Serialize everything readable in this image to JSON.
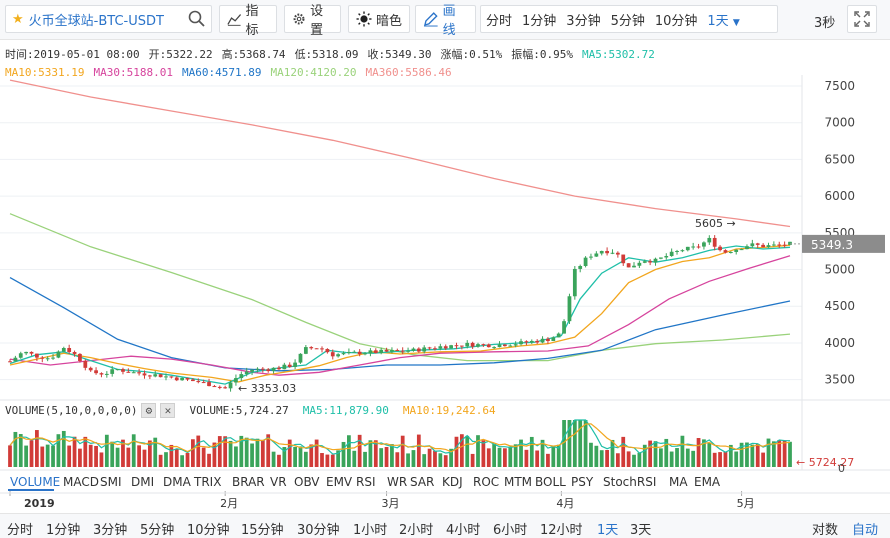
{
  "toolbar": {
    "symbol": "火币全球站-BTC-USDT",
    "indicators_label": "指标",
    "settings_label": "设置",
    "dark_label": "暗色",
    "draw_label": "画线",
    "intervals": [
      "分时",
      "1分钟",
      "3分钟",
      "5分钟",
      "10分钟",
      "1天"
    ],
    "active_interval": "1天",
    "refresh": "3秒"
  },
  "info": {
    "time": "时间:2019-05-01 08:00",
    "open": "开:5322.22",
    "high": "高:5368.74",
    "low": "低:5318.09",
    "close": "收:5349.30",
    "change": "涨幅:0.51%",
    "amplitude": "振幅:0.95%",
    "ma5": "MA5:5302.72",
    "ma10": "MA10:5331.19",
    "ma30": "MA30:5188.01",
    "ma60": "MA60:4571.89",
    "ma120": "MA120:4120.20",
    "ma360": "MA360:5586.46"
  },
  "colors": {
    "up": "#3aa45b",
    "down": "#d13b38",
    "ma5": "#1fbfa8",
    "ma10": "#f2a61e",
    "ma30": "#d6449d",
    "ma60": "#2176c7",
    "ma120": "#9ad27b",
    "ma360": "#f0908d",
    "accent": "#2a73c9"
  },
  "volume_info": {
    "title": "VOLUME(5,10,0,0,0,0)",
    "volume": "VOLUME:5,724.27",
    "ma5": "MA5:11,879.90",
    "ma10": "MA10:19,242.64"
  },
  "indicator_tabs": [
    "VOLUME",
    "MACD",
    "SMI",
    "DMI",
    "DMA",
    "TRIX",
    "BRAR",
    "VR",
    "OBV",
    "EMV",
    "RSI",
    "WR",
    "SAR",
    "KDJ",
    "ROC",
    "MTM",
    "BOLL",
    "PSY",
    "StochRSI",
    "MA",
    "EMA"
  ],
  "active_indicator": "VOLUME",
  "bottom": {
    "intervals": [
      "分时",
      "1分钟",
      "3分钟",
      "5分钟",
      "10分钟",
      "15分钟",
      "30分钟",
      "1小时",
      "2小时",
      "4小时",
      "6小时",
      "12小时",
      "1天",
      "3天"
    ],
    "active_interval": "1天",
    "log_label": "对数",
    "auto_label": "自动"
  },
  "chart_data": {
    "type": "candlestick",
    "price_axis": {
      "ticks": [
        "7500",
        "7000",
        "6500",
        "6000",
        "5500",
        "5000",
        "4500",
        "4000",
        "3500"
      ],
      "range": [
        3250,
        7650
      ]
    },
    "volume_axis": {
      "ticks": [
        "0"
      ]
    },
    "x_labels": [
      "2019",
      "2月",
      "3月",
      "4月",
      "5月"
    ],
    "last_price": "5349.3",
    "max_label": "5605 →",
    "min_label": "← 3353.03",
    "volume_last_label": "← 5724.27",
    "series": {
      "ma360": [
        [
          0,
          7580
        ],
        [
          30,
          7350
        ],
        [
          60,
          7160
        ],
        [
          90,
          6970
        ],
        [
          120,
          6760
        ],
        [
          150,
          6510
        ],
        [
          180,
          6240
        ],
        [
          210,
          6000
        ],
        [
          240,
          5830
        ],
        [
          270,
          5690
        ],
        [
          290,
          5586
        ]
      ],
      "ma120": [
        [
          0,
          5760
        ],
        [
          30,
          5310
        ],
        [
          60,
          4960
        ],
        [
          90,
          4590
        ],
        [
          110,
          4280
        ],
        [
          130,
          3990
        ],
        [
          150,
          3840
        ],
        [
          170,
          3760
        ],
        [
          200,
          3760
        ],
        [
          220,
          3900
        ],
        [
          240,
          3990
        ],
        [
          265,
          4040
        ],
        [
          290,
          4120
        ]
      ],
      "ma60": [
        [
          0,
          4890
        ],
        [
          20,
          4480
        ],
        [
          40,
          4050
        ],
        [
          60,
          3800
        ],
        [
          80,
          3660
        ],
        [
          100,
          3620
        ],
        [
          120,
          3640
        ],
        [
          140,
          3700
        ],
        [
          160,
          3700
        ],
        [
          180,
          3730
        ],
        [
          200,
          3790
        ],
        [
          220,
          3900
        ],
        [
          240,
          4180
        ],
        [
          265,
          4380
        ],
        [
          290,
          4572
        ]
      ],
      "ma30": [
        [
          0,
          3780
        ],
        [
          15,
          3700
        ],
        [
          30,
          3760
        ],
        [
          45,
          3820
        ],
        [
          60,
          3780
        ],
        [
          75,
          3700
        ],
        [
          90,
          3600
        ],
        [
          100,
          3560
        ],
        [
          115,
          3600
        ],
        [
          130,
          3700
        ],
        [
          145,
          3800
        ],
        [
          160,
          3860
        ],
        [
          180,
          3880
        ],
        [
          200,
          3890
        ],
        [
          215,
          3960
        ],
        [
          230,
          4250
        ],
        [
          245,
          4600
        ],
        [
          260,
          4840
        ],
        [
          275,
          5020
        ],
        [
          290,
          5188
        ]
      ],
      "ma10": [
        [
          0,
          3700
        ],
        [
          10,
          3780
        ],
        [
          20,
          3860
        ],
        [
          30,
          3800
        ],
        [
          40,
          3720
        ],
        [
          50,
          3650
        ],
        [
          60,
          3590
        ],
        [
          75,
          3530
        ],
        [
          85,
          3470
        ],
        [
          95,
          3560
        ],
        [
          105,
          3620
        ],
        [
          115,
          3690
        ],
        [
          125,
          3800
        ],
        [
          135,
          3880
        ],
        [
          145,
          3850
        ],
        [
          160,
          3880
        ],
        [
          175,
          3890
        ],
        [
          190,
          3960
        ],
        [
          200,
          3990
        ],
        [
          210,
          4080
        ],
        [
          220,
          4400
        ],
        [
          230,
          4820
        ],
        [
          240,
          5000
        ],
        [
          250,
          5110
        ],
        [
          260,
          5160
        ],
        [
          270,
          5280
        ],
        [
          280,
          5300
        ],
        [
          290,
          5331
        ]
      ],
      "ma5": [
        [
          0,
          3720
        ],
        [
          10,
          3840
        ],
        [
          20,
          3880
        ],
        [
          30,
          3760
        ],
        [
          40,
          3640
        ],
        [
          50,
          3610
        ],
        [
          60,
          3560
        ],
        [
          70,
          3500
        ],
        [
          80,
          3440
        ],
        [
          90,
          3600
        ],
        [
          100,
          3660
        ],
        [
          110,
          3700
        ],
        [
          118,
          3900
        ],
        [
          125,
          3870
        ],
        [
          135,
          3860
        ],
        [
          150,
          3900
        ],
        [
          165,
          3920
        ],
        [
          180,
          3980
        ],
        [
          195,
          4010
        ],
        [
          205,
          4100
        ],
        [
          212,
          4600
        ],
        [
          220,
          4950
        ],
        [
          230,
          5160
        ],
        [
          240,
          5100
        ],
        [
          250,
          5160
        ],
        [
          260,
          5260
        ],
        [
          270,
          5320
        ],
        [
          280,
          5280
        ],
        [
          290,
          5303
        ]
      ],
      "close": [
        [
          0,
          3750
        ],
        [
          5,
          3880
        ],
        [
          10,
          3820
        ],
        [
          15,
          3790
        ],
        [
          20,
          3940
        ],
        [
          25,
          3820
        ],
        [
          30,
          3600
        ],
        [
          35,
          3580
        ],
        [
          40,
          3640
        ],
        [
          45,
          3600
        ],
        [
          50,
          3580
        ],
        [
          55,
          3560
        ],
        [
          60,
          3530
        ],
        [
          65,
          3500
        ],
        [
          70,
          3470
        ],
        [
          75,
          3430
        ],
        [
          80,
          3380
        ],
        [
          85,
          3560
        ],
        [
          90,
          3640
        ],
        [
          95,
          3640
        ],
        [
          100,
          3660
        ],
        [
          105,
          3700
        ],
        [
          110,
          3920
        ],
        [
          115,
          3940
        ],
        [
          120,
          3840
        ],
        [
          125,
          3850
        ],
        [
          130,
          3870
        ],
        [
          140,
          3880
        ],
        [
          150,
          3900
        ],
        [
          160,
          3950
        ],
        [
          170,
          3980
        ],
        [
          180,
          3970
        ],
        [
          190,
          4000
        ],
        [
          200,
          4050
        ],
        [
          205,
          4130
        ],
        [
          210,
          4980
        ],
        [
          215,
          5180
        ],
        [
          220,
          5260
        ],
        [
          225,
          5240
        ],
        [
          230,
          5020
        ],
        [
          235,
          5130
        ],
        [
          240,
          5120
        ],
        [
          245,
          5200
        ],
        [
          250,
          5270
        ],
        [
          255,
          5300
        ],
        [
          260,
          5410
        ],
        [
          265,
          5230
        ],
        [
          270,
          5280
        ],
        [
          275,
          5340
        ],
        [
          280,
          5320
        ],
        [
          285,
          5330
        ],
        [
          290,
          5349
        ]
      ]
    }
  }
}
